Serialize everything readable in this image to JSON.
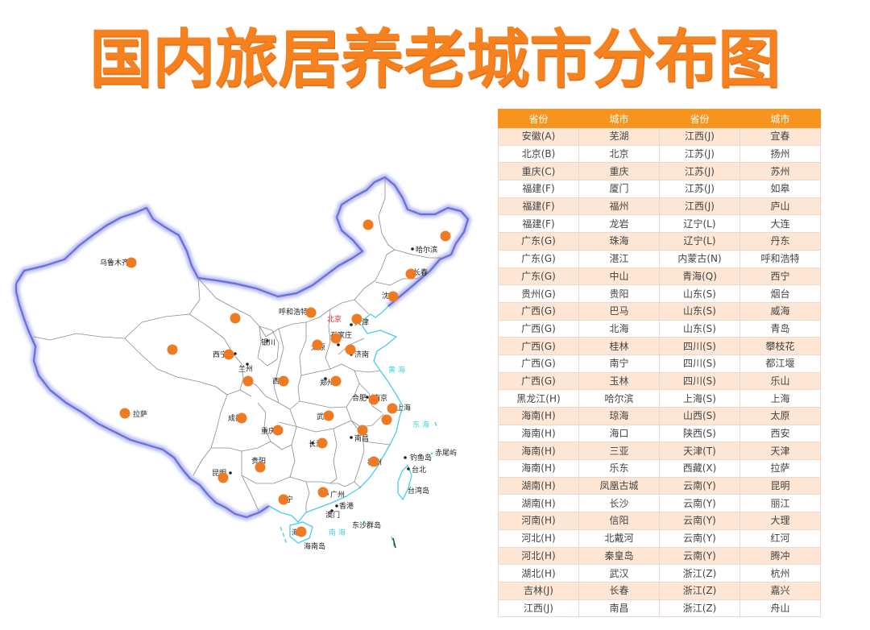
{
  "title": "国内旅居养老城市分布图",
  "colors": {
    "accent": "#f7941d",
    "title": "#f5821f",
    "row_alt": "#fde6d3",
    "dot": "#ee7b22",
    "border": "#6a6fd6",
    "coast": "#45d0df",
    "capital_label": "#e02020"
  },
  "map": {
    "labels": {
      "urumqi": "乌鲁木齐",
      "harbin": "哈尔滨",
      "changchun": "长春",
      "shenyang": "沈阳",
      "hohhot": "呼和浩特",
      "beijing": "北京",
      "tianjin": "天津",
      "shijiazhuang": "石家庄",
      "taiyuan": "太原",
      "jinan": "济南",
      "yinchuan": "银川",
      "xining": "西宁",
      "lanzhou": "兰州",
      "xian": "西安",
      "zhengzhou": "郑州",
      "hefei": "合肥",
      "nanjing": "南京",
      "shanghai": "上海",
      "lhasa": "拉萨",
      "chengdu": "成都",
      "wuhan": "武汉",
      "chongqing": "重庆",
      "changsha": "长沙",
      "nanchang": "南昌",
      "guiyang": "贵阳",
      "fuzhou": "福州",
      "diaoyu": "钓鱼岛",
      "chiwei": "赤尾屿",
      "taipei": "台北",
      "taiwan": "台湾岛",
      "kunming": "昆明",
      "nanning": "南宁",
      "guangzhou": "广州",
      "hongkong": "香港",
      "macau": "澳门",
      "dongsha": "东沙群岛",
      "haikou": "海口",
      "hainan": "海南岛"
    },
    "seas": {
      "yellow": "黄 海",
      "east": "东 海",
      "south": "南 海"
    }
  },
  "table": {
    "headers": [
      "省份",
      "城市",
      "省份",
      "城市"
    ],
    "rows": [
      [
        "安徽(A)",
        "芜湖",
        "江西(J)",
        "宜春"
      ],
      [
        "北京(B)",
        "北京",
        "江苏(J)",
        "扬州"
      ],
      [
        "重庆(C)",
        "重庆",
        "江苏(J)",
        "苏州"
      ],
      [
        "福建(F)",
        "厦门",
        "江苏(J)",
        "如皋"
      ],
      [
        "福建(F)",
        "福州",
        "江西(J)",
        "庐山"
      ],
      [
        "福建(F)",
        "龙岩",
        "辽宁(L)",
        "大连"
      ],
      [
        "广东(G)",
        "珠海",
        "辽宁(L)",
        "丹东"
      ],
      [
        "广东(G)",
        "湛江",
        "内蒙古(N)",
        "呼和浩特"
      ],
      [
        "广东(G)",
        "中山",
        "青海(Q)",
        "西宁"
      ],
      [
        "贵州(G)",
        "贵阳",
        "山东(S)",
        "烟台"
      ],
      [
        "广西(G)",
        "巴马",
        "山东(S)",
        "威海"
      ],
      [
        "广西(G)",
        "北海",
        "山东(S)",
        "青岛"
      ],
      [
        "广西(G)",
        "桂林",
        "四川(S)",
        "攀枝花"
      ],
      [
        "广西(G)",
        "南宁",
        "四川(S)",
        "都江堰"
      ],
      [
        "广西(G)",
        "玉林",
        "四川(S)",
        "乐山"
      ],
      [
        "黑龙江(H)",
        "哈尔滨",
        "上海(S)",
        "上海"
      ],
      [
        "海南(H)",
        "琼海",
        "山西(S)",
        "太原"
      ],
      [
        "海南(H)",
        "海口",
        "陕西(S)",
        "西安"
      ],
      [
        "海南(H)",
        "三亚",
        "天津(T)",
        "天津"
      ],
      [
        "海南(H)",
        "乐东",
        "西藏(X)",
        "拉萨"
      ],
      [
        "湖南(H)",
        "凤凰古城",
        "云南(Y)",
        "昆明"
      ],
      [
        "湖南(H)",
        "长沙",
        "云南(Y)",
        "丽江"
      ],
      [
        "河南(H)",
        "信阳",
        "云南(Y)",
        "大理"
      ],
      [
        "河北(H)",
        "北戴河",
        "云南(Y)",
        "红河"
      ],
      [
        "河北(H)",
        "秦皇岛",
        "云南(Y)",
        "腾冲"
      ],
      [
        "湖北(H)",
        "武汉",
        "浙江(Z)",
        "杭州"
      ],
      [
        "吉林(J)",
        "长春",
        "浙江(Z)",
        "嘉兴"
      ],
      [
        "江西(J)",
        "南昌",
        "浙江(Z)",
        "舟山"
      ]
    ]
  }
}
